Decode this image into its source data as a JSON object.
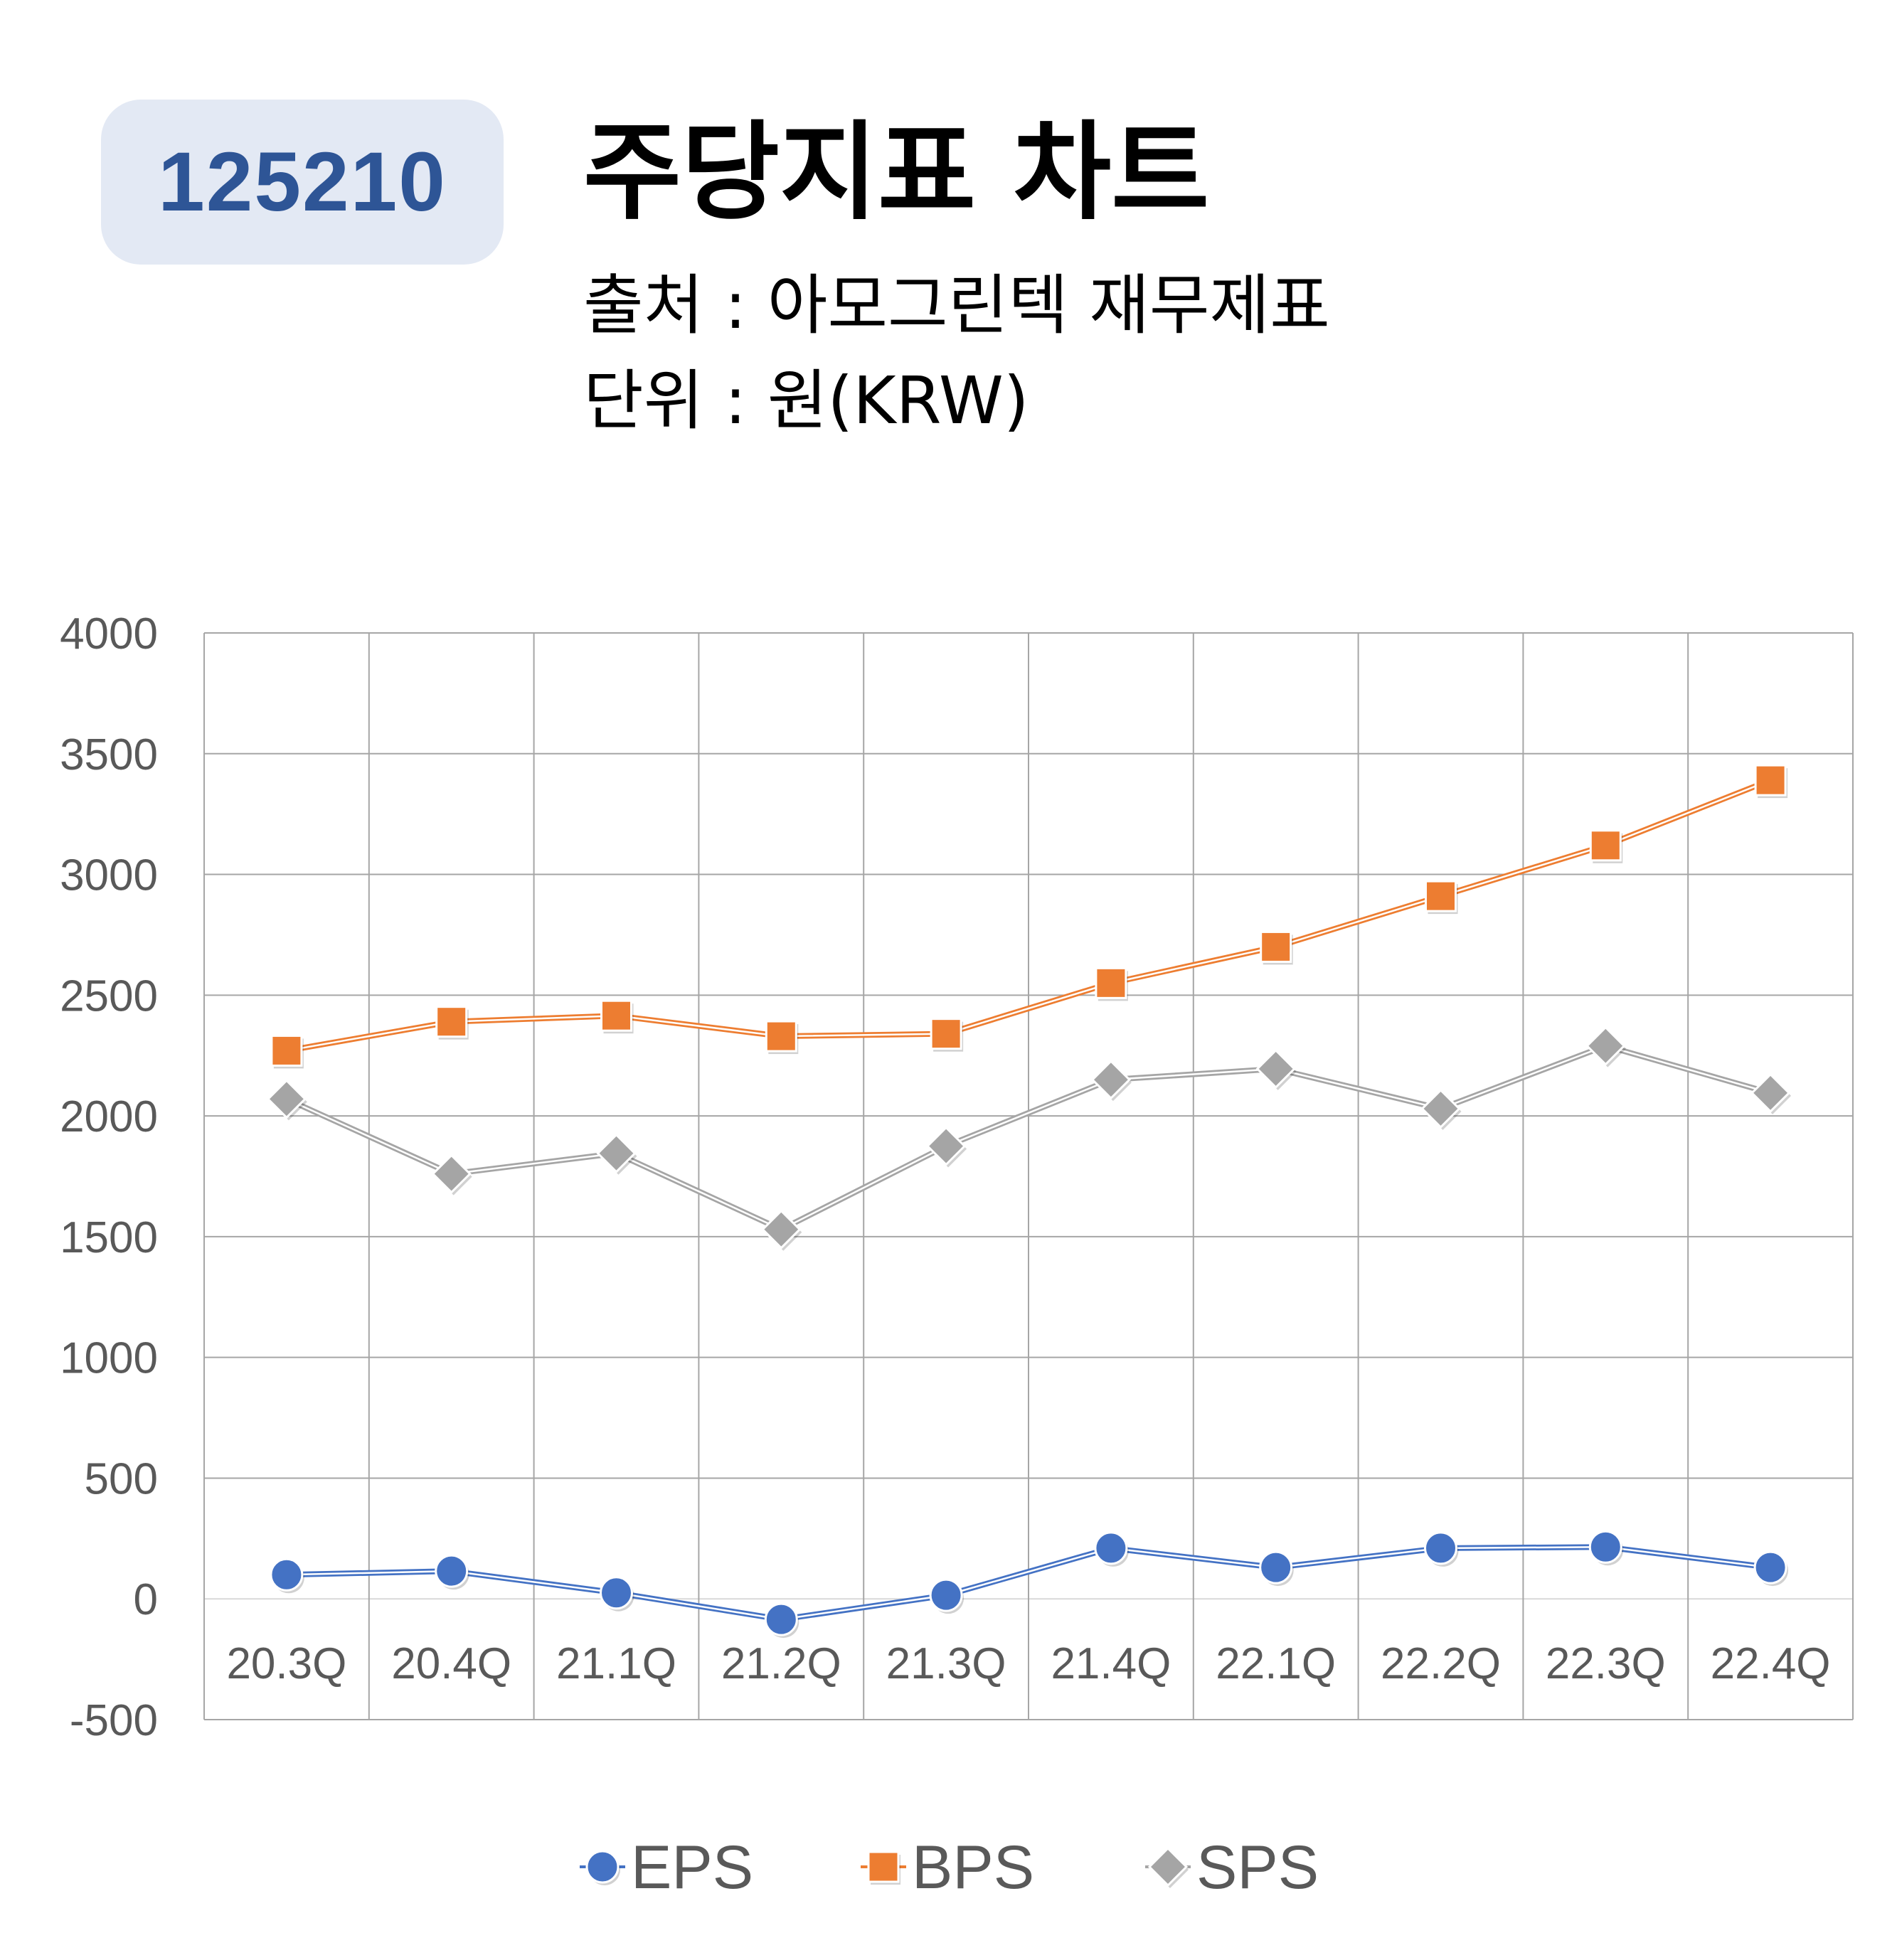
{
  "badge": {
    "code": "125210"
  },
  "header": {
    "title": "주당지표 차트",
    "source": "출처 : 아모그린텍 재무제표",
    "unit": "단위 : 원(KRW)"
  },
  "colors": {
    "EPS": "#4472c4",
    "BPS": "#ed7d31",
    "SPS": "#a5a5a5",
    "grid": "#a6a6a6",
    "axis_text": "#595959",
    "badge_bg": "#e3e9f4",
    "badge_text": "#2e5596"
  },
  "chart_data": {
    "type": "line",
    "categories": [
      "20.3Q",
      "20.4Q",
      "21.1Q",
      "21.2Q",
      "21.3Q",
      "21.4Q",
      "22.1Q",
      "22.2Q",
      "22.3Q",
      "22.4Q"
    ],
    "ylim": [
      -500,
      4000
    ],
    "yticks": [
      "4000",
      "3500",
      "3000",
      "2500",
      "2000",
      "1500",
      "1000",
      "500",
      "0",
      "-500"
    ],
    "grid": true,
    "legend_position": "bottom",
    "series": [
      {
        "name": "EPS",
        "marker": "circle",
        "values": [
          100,
          115,
          25,
          -85,
          15,
          210,
          130,
          210,
          215,
          130
        ]
      },
      {
        "name": "BPS",
        "marker": "square",
        "values": [
          2270,
          2390,
          2415,
          2330,
          2340,
          2550,
          2700,
          2910,
          3120,
          3390
        ]
      },
      {
        "name": "SPS",
        "marker": "diamond",
        "values": [
          2070,
          1760,
          1845,
          1530,
          1875,
          2150,
          2195,
          2030,
          2290,
          2095
        ]
      }
    ]
  }
}
